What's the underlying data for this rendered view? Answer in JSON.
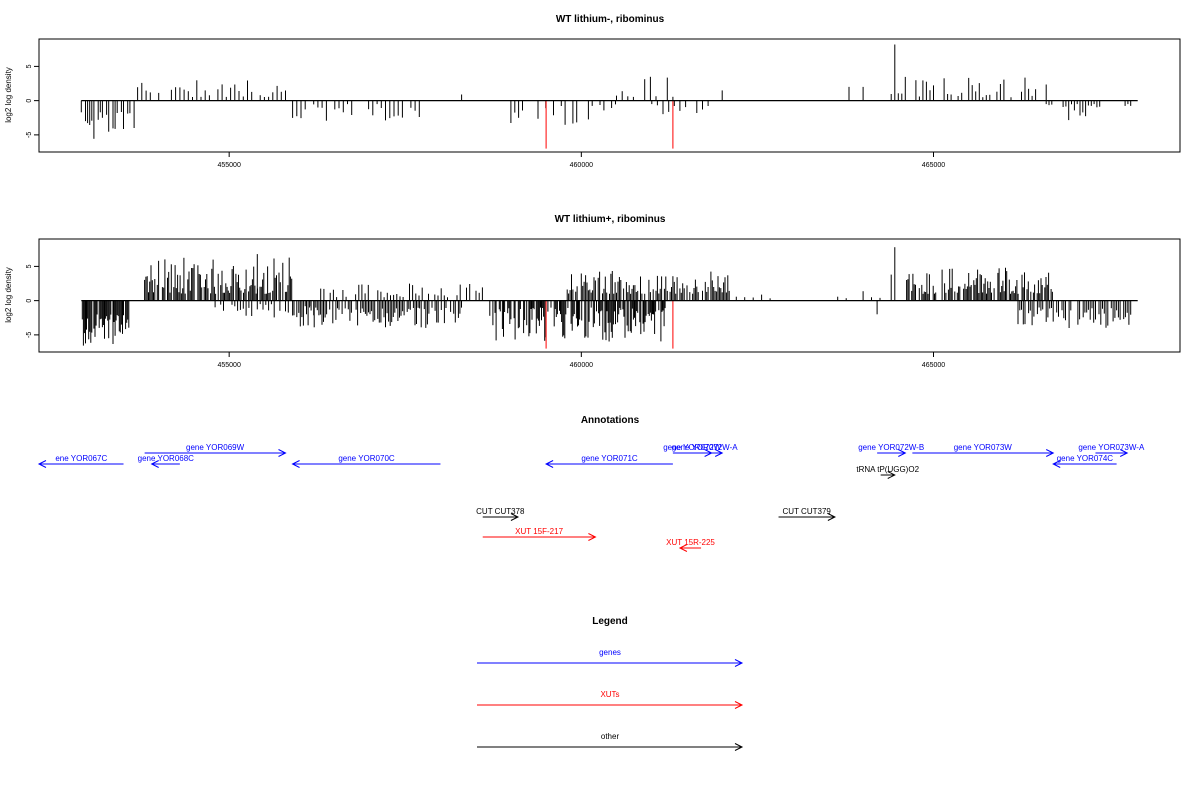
{
  "colors": {
    "genes": "#0000ff",
    "xuts": "#ff0000",
    "other": "#000000",
    "bars": "#000000",
    "highlight": "#ff0000"
  },
  "chart_data": [
    {
      "type": "bar",
      "title": "WT lithium-, ribominus",
      "ylabel": "log2 log density",
      "xlim": [
        452300,
        468500
      ],
      "ylim": [
        -7.5,
        9
      ],
      "xticks": [
        455000,
        460000,
        465000
      ],
      "xtick_labels": [
        "455000",
        "460000",
        "465000"
      ],
      "yticks": [
        -5,
        0,
        5
      ],
      "ytick_labels": [
        "-5",
        "0",
        "5"
      ],
      "baseline": {
        "x": [
          452900,
          467900
        ],
        "y": 0
      },
      "highlights": [
        {
          "x": 459500,
          "y": -7
        },
        {
          "x": 461300,
          "y": -7
        }
      ],
      "clusters": [
        {
          "x": [
            452900,
            453600
          ],
          "sign": -1,
          "min": 1.5,
          "max": 5.8,
          "step": 30
        },
        {
          "x": [
            453700,
            455800
          ],
          "sign": 1,
          "min": 0.5,
          "max": 4,
          "step": 60
        },
        {
          "x": [
            455900,
            457800
          ],
          "sign": -1,
          "min": 0.5,
          "max": 3,
          "step": 60
        },
        {
          "x": [
            459000,
            460500
          ],
          "sign": -1,
          "min": 0.5,
          "max": 4,
          "step": 55
        },
        {
          "x": [
            460500,
            461500
          ],
          "sign": 1,
          "min": 0.5,
          "max": 3.5,
          "step": 80
        },
        {
          "x": [
            461000,
            461800
          ],
          "sign": -1,
          "min": 0.5,
          "max": 2.5,
          "step": 80
        },
        {
          "x": [
            464400,
            466600
          ],
          "sign": 1,
          "min": 0.5,
          "max": 3.5,
          "step": 50
        },
        {
          "x": [
            466600,
            467800
          ],
          "sign": -1,
          "min": 0.5,
          "max": 3.5,
          "step": 40
        }
      ],
      "spikes": [
        {
          "x": 464450,
          "y": 8.2
        },
        {
          "x": 453650,
          "y": -4
        },
        {
          "x": 458300,
          "y": 0.9
        },
        {
          "x": 462000,
          "y": 1.5
        },
        {
          "x": 463800,
          "y": 2
        },
        {
          "x": 464000,
          "y": 2
        }
      ]
    },
    {
      "type": "bar",
      "title": "WT lithium+, ribominus",
      "ylabel": "log2 log density",
      "xlim": [
        452300,
        468500
      ],
      "ylim": [
        -7.5,
        9
      ],
      "xticks": [
        455000,
        460000,
        465000
      ],
      "xtick_labels": [
        "455000",
        "460000",
        "465000"
      ],
      "yticks": [
        -5,
        0,
        5
      ],
      "ytick_labels": [
        "-5",
        "0",
        "5"
      ],
      "baseline": {
        "x": [
          452900,
          467900
        ],
        "y": 0
      },
      "highlights": [
        {
          "x": 459500,
          "y": -7
        },
        {
          "x": 461300,
          "y": -7
        }
      ],
      "clusters": [
        {
          "x": [
            452900,
            453600
          ],
          "sign": -1,
          "min": 2,
          "max": 7,
          "step": 15
        },
        {
          "x": [
            453800,
            455900
          ],
          "sign": 1,
          "min": 1,
          "max": 6.5,
          "step": 18
        },
        {
          "x": [
            454800,
            456200
          ],
          "sign": -1,
          "min": 0.5,
          "max": 2.5,
          "step": 40
        },
        {
          "x": [
            455900,
            458300
          ],
          "sign": -1,
          "min": 1,
          "max": 4,
          "step": 22
        },
        {
          "x": [
            456300,
            458600
          ],
          "sign": 1,
          "min": 0.5,
          "max": 2.5,
          "step": 45
        },
        {
          "x": [
            458700,
            461200
          ],
          "sign": -1,
          "min": 1,
          "max": 6,
          "step": 15
        },
        {
          "x": [
            459800,
            462100
          ],
          "sign": 1,
          "min": 1,
          "max": 4.5,
          "step": 20
        },
        {
          "x": [
            462200,
            464300
          ],
          "sign": 1,
          "min": 0.3,
          "max": 1.5,
          "step": 120
        },
        {
          "x": [
            464600,
            466700
          ],
          "sign": 1,
          "min": 1,
          "max": 4.8,
          "step": 18
        },
        {
          "x": [
            466200,
            467800
          ],
          "sign": -1,
          "min": 1,
          "max": 4,
          "step": 25
        }
      ],
      "spikes": [
        {
          "x": 464450,
          "y": 7.8
        },
        {
          "x": 455400,
          "y": 6.8
        },
        {
          "x": 464200,
          "y": -2
        },
        {
          "x": 464400,
          "y": 3.8
        }
      ]
    }
  ],
  "annotations": {
    "title": "Annotations",
    "xlim": [
      452300,
      468500
    ],
    "features": [
      {
        "label": "ene YOR067C",
        "kind": "genes",
        "start": 452300,
        "end": 453500,
        "strand": "-",
        "row": 1
      },
      {
        "label": "gene YOR069W",
        "kind": "genes",
        "start": 453800,
        "end": 455800,
        "strand": "+",
        "row": 0
      },
      {
        "label": "gene YOR068C",
        "kind": "genes",
        "start": 453900,
        "end": 454300,
        "strand": "-",
        "row": 1
      },
      {
        "label": "gene YOR070C",
        "kind": "genes",
        "start": 455900,
        "end": 458000,
        "strand": "-",
        "row": 1
      },
      {
        "label": "gene YOR071C",
        "kind": "genes",
        "start": 459500,
        "end": 461300,
        "strand": "-",
        "row": 1
      },
      {
        "label": "gene YOR072W",
        "kind": "genes",
        "start": 461300,
        "end": 461850,
        "strand": "+",
        "row": 0
      },
      {
        "label": "gene YOR072W-A",
        "kind": "genes",
        "start": 461500,
        "end": 462000,
        "strand": "+",
        "row": 0
      },
      {
        "label": "gene YOR072W-B",
        "kind": "genes",
        "start": 464200,
        "end": 464600,
        "strand": "+",
        "row": 0
      },
      {
        "label": "gene YOR073W",
        "kind": "genes",
        "start": 464700,
        "end": 466700,
        "strand": "+",
        "row": 0
      },
      {
        "label": "gene YOR074C",
        "kind": "genes",
        "start": 466700,
        "end": 467600,
        "strand": "-",
        "row": 1
      },
      {
        "label": "gene YOR073W-A",
        "kind": "genes",
        "start": 467300,
        "end": 467750,
        "strand": "+",
        "row": 0
      },
      {
        "label": "tRNA tP(UGG)O2",
        "kind": "other",
        "start": 464250,
        "end": 464450,
        "strand": "+",
        "row": 2
      },
      {
        "label": "CUT CUT378",
        "kind": "other",
        "start": 458600,
        "end": 459100,
        "strand": "+",
        "row": 3
      },
      {
        "label": "CUT CUT379",
        "kind": "other",
        "start": 462800,
        "end": 463600,
        "strand": "+",
        "row": 3
      },
      {
        "label": "XUT 15F-217",
        "kind": "xuts",
        "start": 458600,
        "end": 460200,
        "strand": "+",
        "row": 4
      },
      {
        "label": "XUT 15R-225",
        "kind": "xuts",
        "start": 461400,
        "end": 461700,
        "strand": "-",
        "row": 5
      }
    ]
  },
  "legend": {
    "title": "Legend",
    "items": [
      {
        "label": "genes",
        "kind": "genes"
      },
      {
        "label": "XUTs",
        "kind": "xuts"
      },
      {
        "label": "other",
        "kind": "other"
      }
    ]
  }
}
